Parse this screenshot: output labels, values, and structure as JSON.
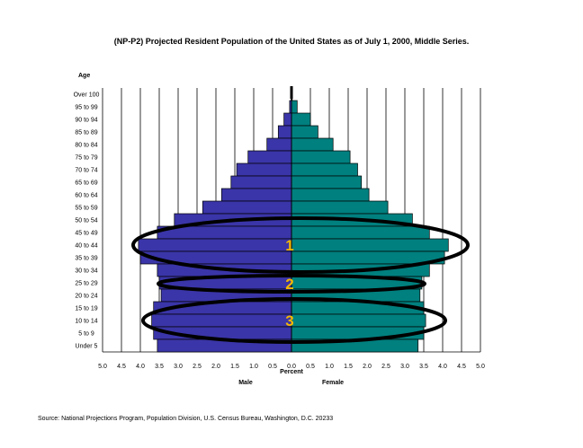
{
  "chart_data": {
    "type": "bar",
    "orientation": "horizontal-population-pyramid",
    "title": "(NP-P2)  Projected Resident Population of the United States as of July 1, 2000, Middle Series.",
    "ylabel": "Age",
    "xlabel": "Percent",
    "xlim": [
      -5.0,
      5.0
    ],
    "x_ticks": [
      "5.0",
      "4.5",
      "4.0",
      "3.5",
      "3.0",
      "2.5",
      "2.0",
      "1.5",
      "1.0",
      "0.5",
      "0.0",
      "0.5",
      "1.0",
      "1.5",
      "2.0",
      "2.5",
      "3.0",
      "3.5",
      "4.0",
      "4.5",
      "5.0"
    ],
    "grid": true,
    "categories": [
      "Over 100",
      "95 to 99",
      "90 to 94",
      "85 to 89",
      "80 to 84",
      "75 to 79",
      "70 to 74",
      "65 to 69",
      "60 to 64",
      "55 to 59",
      "50 to 54",
      "45 to 49",
      "40 to 44",
      "35 to 39",
      "30 to 34",
      "25 to 29",
      "20 to 24",
      "15 to 19",
      "10 to 14",
      "5 to 9",
      "Under 5"
    ],
    "series": [
      {
        "name": "Male",
        "color": "#3a35a8",
        "values": [
          0.01,
          0.05,
          0.2,
          0.35,
          0.65,
          1.15,
          1.45,
          1.6,
          1.85,
          2.35,
          3.1,
          3.55,
          4.05,
          4.0,
          3.55,
          3.5,
          3.45,
          3.65,
          3.7,
          3.65,
          3.55
        ]
      },
      {
        "name": "Female",
        "color": "#00807f",
        "values": [
          0.02,
          0.15,
          0.5,
          0.7,
          1.1,
          1.55,
          1.75,
          1.85,
          2.05,
          2.55,
          3.2,
          3.65,
          4.15,
          4.05,
          3.65,
          3.45,
          3.4,
          3.5,
          3.55,
          3.5,
          3.35
        ]
      }
    ],
    "highlights": [
      {
        "label": "1",
        "ages": "35 to 44"
      },
      {
        "label": "2",
        "ages": "25 to 29"
      },
      {
        "label": "3",
        "ages": "10 to 19"
      }
    ]
  },
  "source": "Source:  National Projections Program, Population Division, U.S. Census Bureau, Washington, D.C. 20233"
}
